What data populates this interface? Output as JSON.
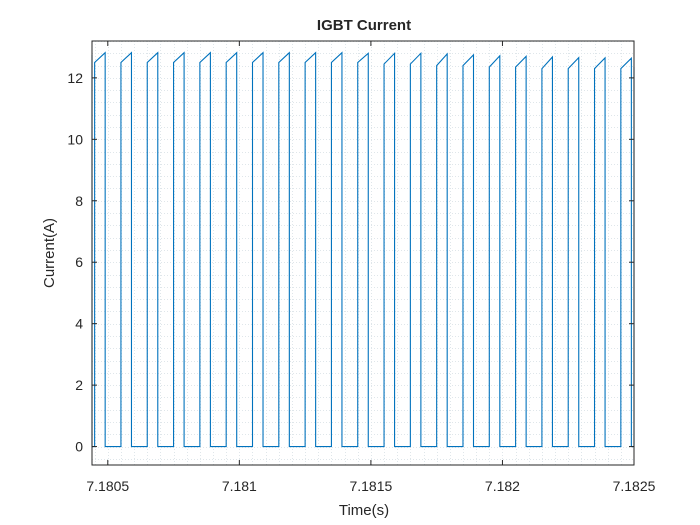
{
  "chart_data": {
    "type": "line",
    "title": "IGBT Current",
    "xlabel": "Time(s)",
    "ylabel": "Current(A)",
    "xlim": [
      7.18044,
      7.1825
    ],
    "ylim": [
      -0.6,
      13.2
    ],
    "grid": "minor dotted",
    "legend": "none",
    "line_color": "#0072bd",
    "xticks": [
      7.1805,
      7.181,
      7.1815,
      7.182,
      7.1825
    ],
    "xtick_labels": [
      "7.1805",
      "7.181",
      "7.1815",
      "7.182",
      "7.1825"
    ],
    "yticks": [
      0,
      2,
      4,
      6,
      8,
      10,
      12
    ],
    "ytick_labels": [
      "0",
      "2",
      "4",
      "6",
      "8",
      "10",
      "12"
    ],
    "series": [
      {
        "period_s": 0.0001,
        "on_duration_s": 4e-05,
        "off_level_A": 0,
        "pulses": [
          {
            "t_on": 7.18035,
            "t_off": 7.18044,
            "i_start": 12.6,
            "i_end": 12.75
          },
          {
            "t_on": 7.18045,
            "t_off": 7.18049,
            "i_start": 12.5,
            "i_end": 12.82
          },
          {
            "t_on": 7.18055,
            "t_off": 7.18059,
            "i_start": 12.5,
            "i_end": 12.82
          },
          {
            "t_on": 7.18065,
            "t_off": 7.18069,
            "i_start": 12.5,
            "i_end": 12.82
          },
          {
            "t_on": 7.18075,
            "t_off": 7.18079,
            "i_start": 12.5,
            "i_end": 12.82
          },
          {
            "t_on": 7.18085,
            "t_off": 7.18089,
            "i_start": 12.5,
            "i_end": 12.82
          },
          {
            "t_on": 7.18095,
            "t_off": 7.18099,
            "i_start": 12.5,
            "i_end": 12.82
          },
          {
            "t_on": 7.18105,
            "t_off": 7.18109,
            "i_start": 12.5,
            "i_end": 12.82
          },
          {
            "t_on": 7.18115,
            "t_off": 7.18119,
            "i_start": 12.5,
            "i_end": 12.82
          },
          {
            "t_on": 7.18125,
            "t_off": 7.18129,
            "i_start": 12.5,
            "i_end": 12.82
          },
          {
            "t_on": 7.18135,
            "t_off": 7.18139,
            "i_start": 12.5,
            "i_end": 12.82
          },
          {
            "t_on": 7.18145,
            "t_off": 7.18149,
            "i_start": 12.5,
            "i_end": 12.8
          },
          {
            "t_on": 7.18155,
            "t_off": 7.18159,
            "i_start": 12.45,
            "i_end": 12.8
          },
          {
            "t_on": 7.18165,
            "t_off": 7.18169,
            "i_start": 12.45,
            "i_end": 12.8
          },
          {
            "t_on": 7.18175,
            "t_off": 7.18179,
            "i_start": 12.4,
            "i_end": 12.78
          },
          {
            "t_on": 7.18185,
            "t_off": 7.18189,
            "i_start": 12.4,
            "i_end": 12.75
          },
          {
            "t_on": 7.18195,
            "t_off": 7.18199,
            "i_start": 12.35,
            "i_end": 12.72
          },
          {
            "t_on": 7.18205,
            "t_off": 7.18209,
            "i_start": 12.35,
            "i_end": 12.7
          },
          {
            "t_on": 7.18215,
            "t_off": 7.18219,
            "i_start": 12.3,
            "i_end": 12.68
          },
          {
            "t_on": 7.18225,
            "t_off": 7.18229,
            "i_start": 12.3,
            "i_end": 12.66
          },
          {
            "t_on": 7.18235,
            "t_off": 7.18239,
            "i_start": 12.3,
            "i_end": 12.65
          },
          {
            "t_on": 7.18245,
            "t_off": 7.18249,
            "i_start": 12.3,
            "i_end": 12.64
          },
          {
            "t_on": 7.1825,
            "t_off": 7.1826,
            "i_start": 12.35,
            "i_end": 12.5
          }
        ]
      }
    ]
  }
}
